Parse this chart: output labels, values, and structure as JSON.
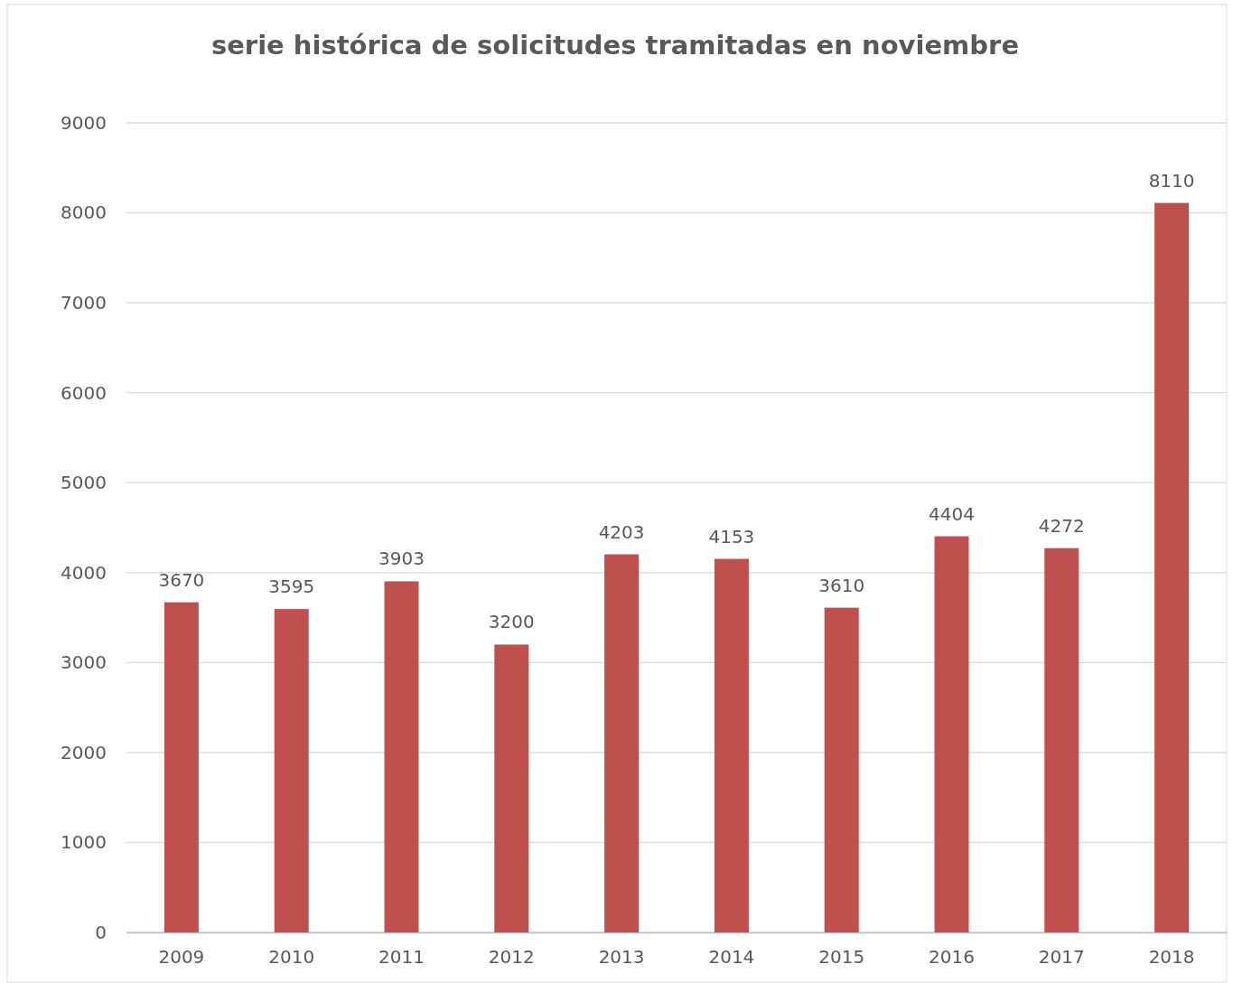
{
  "chart_data": {
    "type": "bar",
    "title": "serie histórica de solicitudes tramitadas en noviembre",
    "categories": [
      "2009",
      "2010",
      "2011",
      "2012",
      "2013",
      "2014",
      "2015",
      "2016",
      "2017",
      "2018"
    ],
    "values": [
      3670,
      3595,
      3903,
      3200,
      4203,
      4153,
      3610,
      4404,
      4272,
      8110
    ],
    "color": "#c0504d",
    "ylim": [
      0,
      9000
    ],
    "yticks": [
      0,
      1000,
      2000,
      3000,
      4000,
      5000,
      6000,
      7000,
      8000,
      9000
    ],
    "grid": "y",
    "data_labels": true
  }
}
